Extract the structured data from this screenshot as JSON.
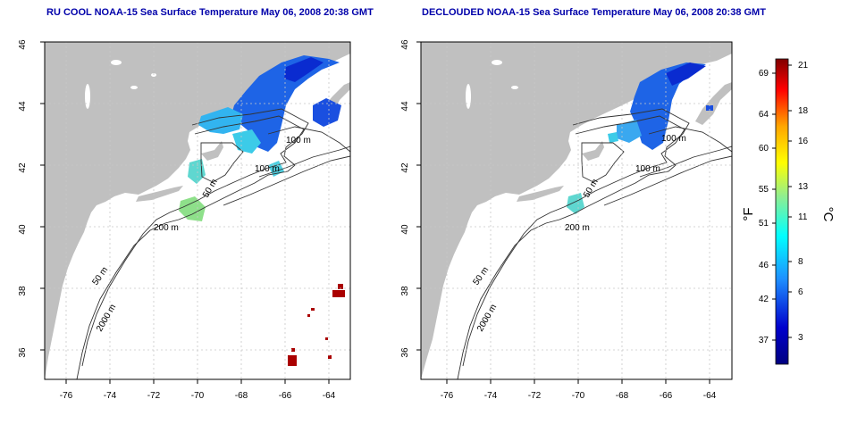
{
  "left_panel": {
    "title": "RU COOL NOAA-15 Sea Surface Temperature May 06, 2008 20:38 GMT",
    "lat_ticks": [
      "46",
      "44",
      "42",
      "40",
      "38",
      "36"
    ],
    "lon_ticks": [
      "-76",
      "-74",
      "-72",
      "-70",
      "-68",
      "-66",
      "-64"
    ],
    "contour_labels": [
      "100 m",
      "100 m",
      "50 m",
      "200 m",
      "50 m",
      "2000 m"
    ]
  },
  "right_panel": {
    "title": "DECLOUDED NOAA-15 Sea Surface Temperature May 06, 2008 20:38 GMT",
    "lat_ticks": [
      "46",
      "44",
      "42",
      "40",
      "38",
      "36"
    ],
    "lon_ticks": [
      "-76",
      "-74",
      "-72",
      "-70",
      "-68",
      "-66",
      "-64"
    ],
    "contour_labels": [
      "100 m",
      "100 m",
      "50 m",
      "200 m",
      "50 m",
      "2000 m"
    ]
  },
  "colorbar": {
    "fahrenheit_unit": "°F",
    "celsius_unit": "°C",
    "fahrenheit_ticks": [
      "69",
      "64",
      "60",
      "55",
      "51",
      "46",
      "42",
      "37"
    ],
    "celsius_ticks": [
      "21",
      "18",
      "16",
      "13",
      "11",
      "8",
      "6",
      "3"
    ],
    "colors": [
      "#800000",
      "#ff0000",
      "#ffa500",
      "#ffff00",
      "#90ee90",
      "#00ffff",
      "#1e90ff",
      "#0000cd",
      "#000080"
    ]
  },
  "colors": {
    "land": "#c0c0c0",
    "title": "#0000aa",
    "grid": "#c8c8c8"
  }
}
